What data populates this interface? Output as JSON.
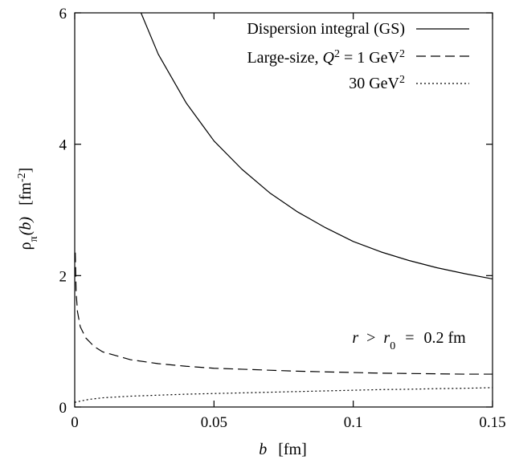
{
  "chart_data": {
    "type": "line",
    "xlabel": {
      "var": "b",
      "unit": "[fm]"
    },
    "ylabel": {
      "rho": "ρ",
      "sub": "π",
      "arg": "(b)",
      "unit_pre": "[fm",
      "unit_exp": "-2",
      "unit_post": "]"
    },
    "xlim": [
      0,
      0.15
    ],
    "ylim": [
      0,
      6
    ],
    "x_ticks": [
      0,
      0.05,
      0.1,
      0.15
    ],
    "x_tick_labels": [
      "0",
      "0.05",
      "0.1",
      "0.15"
    ],
    "y_ticks": [
      0,
      2,
      4,
      6
    ],
    "y_tick_labels": [
      "0",
      "2",
      "4",
      "6"
    ],
    "grid": false,
    "legend_position": "top-right",
    "legend": [
      {
        "series": 0,
        "text": "Dispersion integral (GS)"
      },
      {
        "series": 1,
        "text_pre": "Large-size, ",
        "var": "Q",
        "exp": "2",
        "text_mid": " = 1 GeV",
        "exp2": "2"
      },
      {
        "series": 2,
        "text_pre": "30 GeV",
        "exp": "2"
      }
    ],
    "annotation": {
      "var1": "r",
      "op1": ">",
      "var2": "r",
      "sub2": "0",
      "op2": "=",
      "value": "0.2 fm"
    },
    "series": [
      {
        "color": "#000000",
        "dash": "solid",
        "points": [
          [
            0.0238,
            6.0
          ],
          [
            0.03,
            5.37
          ],
          [
            0.04,
            4.63
          ],
          [
            0.05,
            4.05
          ],
          [
            0.06,
            3.62
          ],
          [
            0.07,
            3.26
          ],
          [
            0.08,
            2.97
          ],
          [
            0.09,
            2.73
          ],
          [
            0.1,
            2.52
          ],
          [
            0.11,
            2.36
          ],
          [
            0.12,
            2.23
          ],
          [
            0.13,
            2.12
          ],
          [
            0.14,
            2.03
          ],
          [
            0.15,
            1.95
          ]
        ]
      },
      {
        "color": "#000000",
        "dash": "dashed",
        "points": [
          [
            0.0002,
            2.35
          ],
          [
            0.0005,
            1.75
          ],
          [
            0.001,
            1.45
          ],
          [
            0.002,
            1.22
          ],
          [
            0.004,
            1.05
          ],
          [
            0.007,
            0.92
          ],
          [
            0.01,
            0.84
          ],
          [
            0.02,
            0.72
          ],
          [
            0.03,
            0.66
          ],
          [
            0.04,
            0.62
          ],
          [
            0.05,
            0.59
          ],
          [
            0.06,
            0.575
          ],
          [
            0.07,
            0.56
          ],
          [
            0.08,
            0.545
          ],
          [
            0.09,
            0.535
          ],
          [
            0.1,
            0.525
          ],
          [
            0.11,
            0.515
          ],
          [
            0.12,
            0.51
          ],
          [
            0.13,
            0.505
          ],
          [
            0.14,
            0.5
          ],
          [
            0.15,
            0.5
          ]
        ]
      },
      {
        "color": "#000000",
        "dash": "dotted",
        "points": [
          [
            0.0,
            0.07
          ],
          [
            0.002,
            0.09
          ],
          [
            0.005,
            0.115
          ],
          [
            0.01,
            0.14
          ],
          [
            0.02,
            0.165
          ],
          [
            0.03,
            0.18
          ],
          [
            0.04,
            0.195
          ],
          [
            0.05,
            0.205
          ],
          [
            0.06,
            0.215
          ],
          [
            0.07,
            0.225
          ],
          [
            0.08,
            0.235
          ],
          [
            0.09,
            0.245
          ],
          [
            0.1,
            0.255
          ],
          [
            0.11,
            0.265
          ],
          [
            0.12,
            0.27
          ],
          [
            0.13,
            0.28
          ],
          [
            0.14,
            0.285
          ],
          [
            0.15,
            0.295
          ]
        ]
      }
    ]
  }
}
